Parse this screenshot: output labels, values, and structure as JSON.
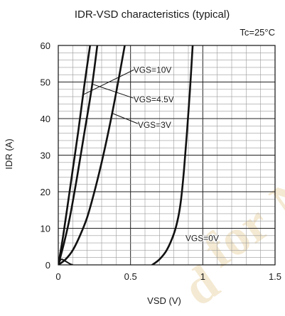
{
  "chart_data": {
    "type": "line",
    "title": "IDR-VSD characteristics (typical)",
    "condition": "Tc=25°C",
    "xlabel": "VSD (V)",
    "ylabel": "IDR (A)",
    "xlim": [
      0,
      1.5
    ],
    "ylim": [
      0,
      60
    ],
    "x_ticks": [
      "0",
      "0.5",
      "1",
      "1.5"
    ],
    "y_ticks": [
      "0",
      "10",
      "20",
      "30",
      "40",
      "50",
      "60"
    ],
    "grid": true,
    "series": [
      {
        "name": "VGS=10V",
        "x": [
          0.0,
          0.03,
          0.06,
          0.1,
          0.14,
          0.18,
          0.22
        ],
        "y": [
          0,
          7,
          15,
          26,
          37,
          49,
          60
        ]
      },
      {
        "name": "VGS=4.5V",
        "x": [
          0.0,
          0.04,
          0.08,
          0.13,
          0.18,
          0.23,
          0.27
        ],
        "y": [
          0,
          6,
          13,
          24,
          36,
          48,
          60
        ]
      },
      {
        "name": "VGS=3V",
        "x": [
          0.0,
          0.05,
          0.1,
          0.15,
          0.2,
          0.25,
          0.3,
          0.35,
          0.4,
          0.46
        ],
        "y": [
          0,
          1.5,
          4,
          8,
          13,
          20,
          28,
          37,
          47,
          60
        ]
      },
      {
        "name": "VGS=0V",
        "x": [
          0.65,
          0.7,
          0.75,
          0.8,
          0.83,
          0.85,
          0.87,
          0.89,
          0.91,
          0.93
        ],
        "y": [
          0,
          1.5,
          4,
          8.5,
          13,
          18,
          26,
          36,
          47,
          60
        ]
      }
    ],
    "labels": [
      {
        "text": "VGS=10V",
        "x": 0.52,
        "y": 52.5,
        "point_x": 0.17,
        "point_y": 46.5
      },
      {
        "text": "VGS=4.5V",
        "x": 0.52,
        "y": 44.5,
        "point_x": 0.23,
        "point_y": 49.5
      },
      {
        "text": "VGS=3V",
        "x": 0.55,
        "y": 37.5,
        "point_x": 0.37,
        "point_y": 41.5
      },
      {
        "text": "VGS=0V",
        "x": 0.88,
        "y": 6.5,
        "point_x": null,
        "point_y": null
      }
    ],
    "bump": {
      "x": [
        0.0,
        0.02,
        0.05,
        0.08,
        0.1
      ],
      "y": [
        0,
        1.5,
        1.0,
        0.3,
        0
      ]
    }
  },
  "watermark": {
    "text": "Not Recommended for New Design"
  }
}
